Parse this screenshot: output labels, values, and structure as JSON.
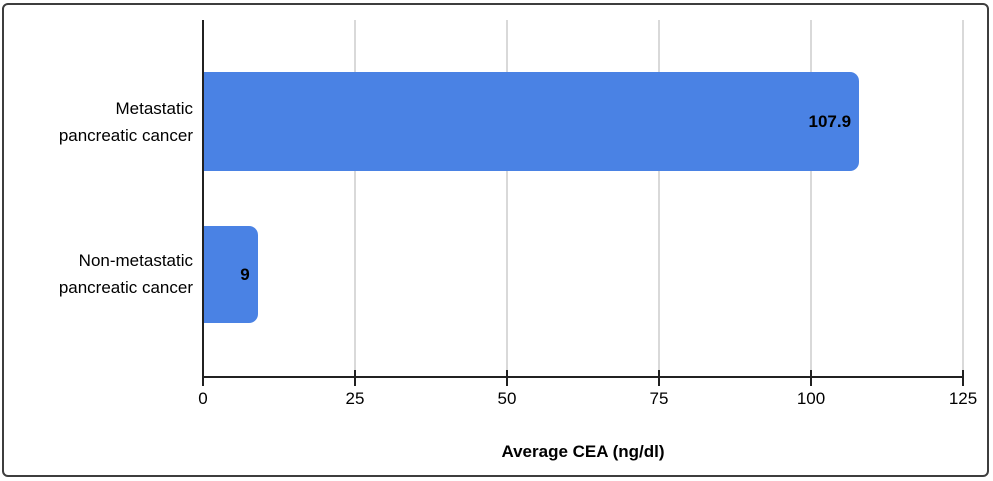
{
  "chart_data": {
    "type": "bar",
    "orientation": "horizontal",
    "xlabel": "Average CEA (ng/dl)",
    "categories": [
      "Metastatic pancreatic cancer",
      "Non-metastatic pancreatic cancer"
    ],
    "category_lines": [
      [
        "Metastatic",
        "pancreatic cancer"
      ],
      [
        "Non-metastatic",
        "pancreatic cancer"
      ]
    ],
    "values": [
      107.9,
      9
    ],
    "value_labels": [
      "107.9",
      "9"
    ],
    "xticks": [
      0,
      25,
      50,
      75,
      100,
      125
    ],
    "xlim": [
      0,
      125
    ],
    "grid": true,
    "legend": "none",
    "bar_color": "#4a82e4"
  },
  "colors": {
    "bar": "#4a82e4",
    "axis": "#212121",
    "gridline": "#d9d9d9",
    "text": "#000000",
    "frame_border": "#3e3e3e",
    "background": "#ffffff"
  }
}
